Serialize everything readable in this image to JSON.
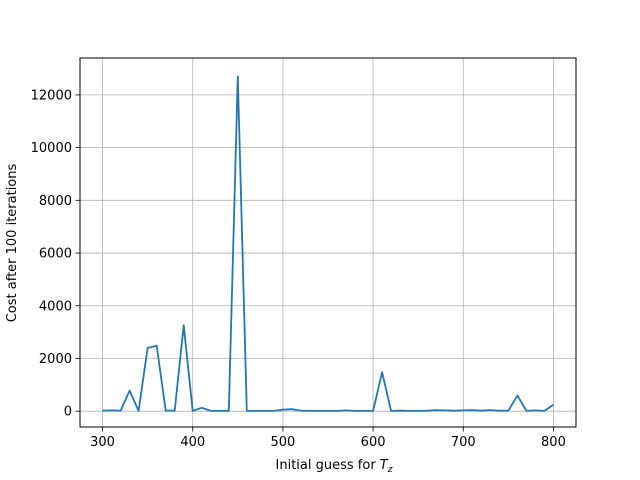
{
  "chart_data": {
    "type": "line",
    "title": "",
    "xlabel": "Initial guess for ",
    "xlabel_math_symbol": "T",
    "xlabel_math_subscript": "z",
    "ylabel": "Cost after 100 iterations",
    "xlim": [
      275,
      825
    ],
    "ylim": [
      -600,
      13400
    ],
    "xticks": [
      300,
      400,
      500,
      600,
      700,
      800
    ],
    "yticks": [
      0,
      2000,
      4000,
      6000,
      8000,
      10000,
      12000
    ],
    "grid": true,
    "color": "#1f77b4",
    "series": [
      {
        "x": [
          300,
          310,
          320,
          330,
          340,
          350,
          360,
          370,
          380,
          390,
          400,
          410,
          420,
          430,
          440,
          450,
          460,
          470,
          480,
          490,
          500,
          510,
          520,
          530,
          540,
          550,
          560,
          570,
          580,
          590,
          600,
          610,
          620,
          630,
          640,
          650,
          660,
          670,
          680,
          690,
          700,
          710,
          720,
          730,
          740,
          750,
          760,
          770,
          780,
          790,
          800
        ],
        "y": [
          20,
          30,
          20,
          780,
          10,
          2400,
          2480,
          20,
          20,
          3260,
          10,
          130,
          10,
          10,
          10,
          12700,
          10,
          10,
          10,
          10,
          60,
          80,
          20,
          10,
          10,
          10,
          10,
          30,
          10,
          10,
          10,
          1480,
          10,
          20,
          10,
          10,
          20,
          40,
          30,
          20,
          30,
          40,
          20,
          40,
          20,
          20,
          600,
          10,
          30,
          10,
          250
        ]
      }
    ]
  }
}
